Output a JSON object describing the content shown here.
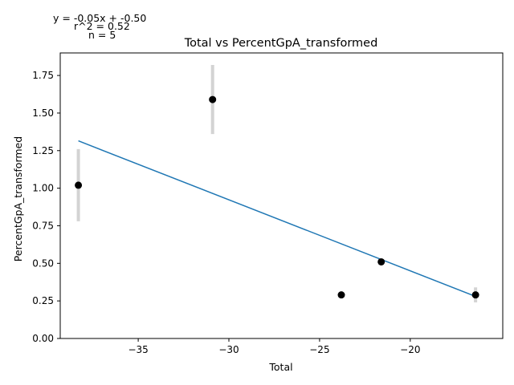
{
  "chart_data": {
    "type": "scatter",
    "title": "Total vs PercentGpA_transformed",
    "xlabel": "Total",
    "ylabel": "PercentGpA_transformed",
    "xlim": [
      -39.3,
      -14.9
    ],
    "ylim": [
      0.0,
      1.9
    ],
    "xticks": [
      -35,
      -30,
      -25,
      -20
    ],
    "yticks": [
      0.0,
      0.25,
      0.5,
      0.75,
      1.0,
      1.25,
      1.5,
      1.75
    ],
    "xtick_labels": [
      "−35",
      "−30",
      "−25",
      "−20"
    ],
    "ytick_labels": [
      "0.00",
      "0.25",
      "0.50",
      "0.75",
      "1.00",
      "1.25",
      "1.50",
      "1.75"
    ],
    "points": [
      {
        "x": -38.3,
        "y": 1.02,
        "err": 0.24
      },
      {
        "x": -30.9,
        "y": 1.59,
        "err": 0.23
      },
      {
        "x": -23.8,
        "y": 0.29,
        "err": 0.0
      },
      {
        "x": -21.6,
        "y": 0.51,
        "err": 0.0
      },
      {
        "x": -16.4,
        "y": 0.29,
        "err": 0.05
      }
    ],
    "fit_line": {
      "x": [
        -38.3,
        -16.4
      ],
      "y": [
        1.315,
        0.28
      ]
    },
    "marker_color": "#000000",
    "errorbar_color": "#d3d3d3",
    "line_color": "#1f77b4",
    "grid": false
  },
  "annotation": {
    "equation": "y = -0.05x + -0.50",
    "r2": "r^2 = 0.52",
    "n": "n = 5"
  }
}
